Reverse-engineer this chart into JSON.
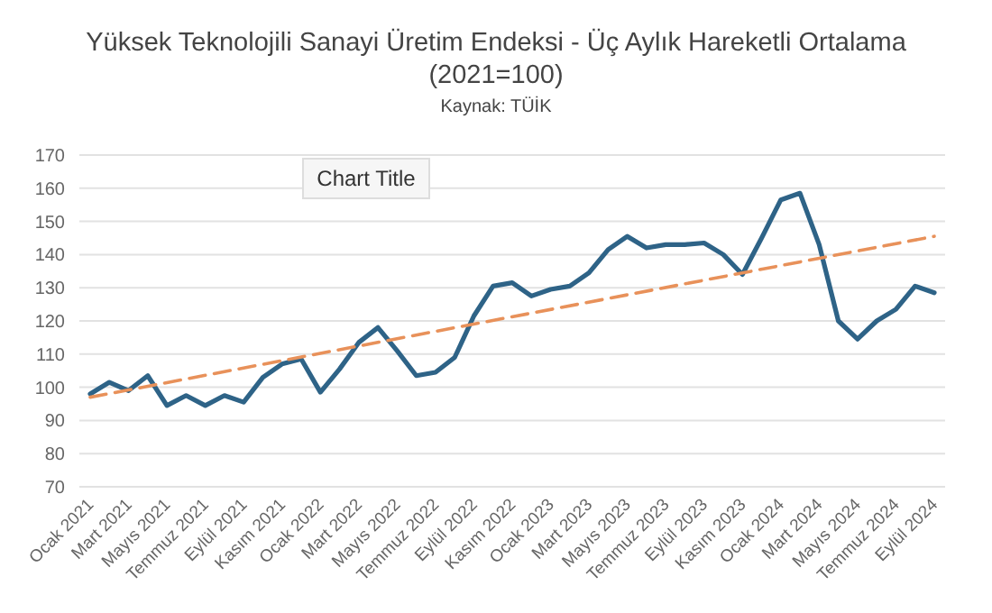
{
  "chart_data": {
    "type": "line",
    "title": "Yüksek Teknolojili Sanayi Üretim Endeksi - Üç Aylık Hareketli Ortalama",
    "subtitle": "(2021=100)",
    "annotations": [
      "Kaynak: TÜİK",
      "Chart Title"
    ],
    "categories": [
      "Ocak 2021",
      null,
      "Mart 2021",
      null,
      "Mayıs 2021",
      null,
      "Temmuz 2021",
      null,
      "Eylül 2021",
      null,
      "Kasım 2021",
      null,
      "Ocak 2022",
      null,
      "Mart 2022",
      null,
      "Mayıs 2022",
      null,
      "Temmuz 2022",
      null,
      "Eylül 2022",
      null,
      "Kasım 2022",
      null,
      "Ocak 2023",
      null,
      "Mart 2023",
      null,
      "Mayıs 2023",
      null,
      "Temmuz 2023",
      null,
      "Eylül 2023",
      null,
      "Kasım 2023",
      null,
      "Ocak 2024",
      null,
      "Mart 2024",
      null,
      "Mayıs 2024",
      null,
      "Temmuz 2024",
      null,
      "Eylül 2024"
    ],
    "series": [
      {
        "color": "#2e6387",
        "values": [
          98,
          101.5,
          99,
          103.5,
          94.5,
          97.5,
          94.5,
          97.5,
          95.5,
          103,
          107,
          108.5,
          98.5,
          105.5,
          113.5,
          118,
          111,
          103.5,
          104.5,
          109,
          121.5,
          130.5,
          131.5,
          127.5,
          129.5,
          130.5,
          134.5,
          141.5,
          145.5,
          142,
          143,
          143,
          143.5,
          140,
          134,
          145,
          156.5,
          158.5,
          143,
          120,
          114.5,
          120,
          123.5,
          130.5,
          128.5
        ]
      },
      {
        "type": "line",
        "x": [
          "Ocak 2021",
          "Eylül 2024"
        ],
        "color": "#e8915a",
        "line_style": "dashed",
        "values": [
          97,
          145.5
        ]
      }
    ],
    "ylim": [
      70,
      170
    ],
    "yticks": [
      70,
      80,
      90,
      100,
      110,
      120,
      130,
      140,
      150,
      160,
      170
    ],
    "grid": "y"
  }
}
